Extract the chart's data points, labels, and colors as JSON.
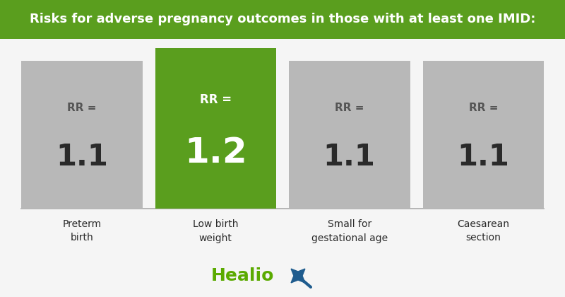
{
  "title": "Risks for adverse pregnancy outcomes in those with at least one IMID:",
  "title_bg": "#5a9e1e",
  "title_color": "#ffffff",
  "bg_color": "#f5f5f5",
  "bars": [
    {
      "label": "Preterm\nbirth",
      "rr": "1.1",
      "color": "#b8b8b8",
      "text_color": "#555555",
      "value_color": "#2a2a2a",
      "highlighted": false
    },
    {
      "label": "Low birth\nweight",
      "rr": "1.2",
      "color": "#5a9e1e",
      "text_color": "#ffffff",
      "value_color": "#ffffff",
      "highlighted": true
    },
    {
      "label": "Small for\ngestational age",
      "rr": "1.1",
      "color": "#b8b8b8",
      "text_color": "#555555",
      "value_color": "#2a2a2a",
      "highlighted": false
    },
    {
      "label": "Caesarean\nsection",
      "rr": "1.1",
      "color": "#b8b8b8",
      "text_color": "#555555",
      "value_color": "#2a2a2a",
      "highlighted": false
    }
  ],
  "healio_color": "#5aaa00",
  "healio_star_color": "#1f5c8e",
  "line_color": "#aaaaaa",
  "fig_width": 8.0,
  "fig_height": 4.2,
  "dpi": 100
}
